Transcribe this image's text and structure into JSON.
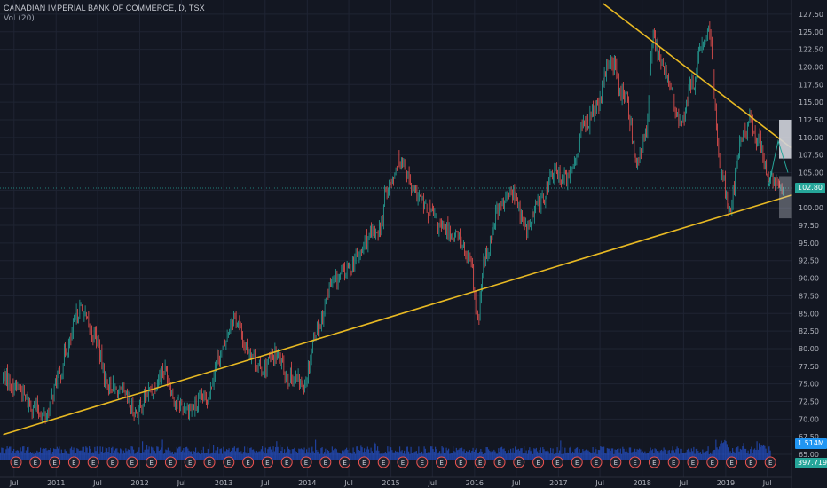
{
  "header": {
    "symbol_title": "CANADIAN IMPERIAL BANK OF COMMERCE, D, TSX",
    "volume_indicator": "Vol (20)"
  },
  "price_scale": {
    "ticks": [
      "127.50",
      "125.00",
      "122.50",
      "120.00",
      "117.50",
      "115.00",
      "112.50",
      "110.00",
      "107.50",
      "105.00",
      "102.50",
      "100.00",
      "97.50",
      "95.00",
      "92.50",
      "90.00",
      "87.50",
      "85.00",
      "82.50",
      "80.00",
      "77.50",
      "75.00",
      "72.50",
      "70.00",
      "67.50",
      "65.00"
    ],
    "last_price": "102.80",
    "last_volume": "1.514M",
    "volume_ma": "397.719K"
  },
  "time_axis": {
    "labels": [
      "Jul",
      "2011",
      "Jul",
      "2012",
      "Jul",
      "2013",
      "Jul",
      "2014",
      "Jul",
      "2015",
      "Jul",
      "2016",
      "Jul",
      "2017",
      "Jul",
      "2018",
      "Jul",
      "2019",
      "Jul"
    ]
  },
  "earnings_marker_label": "E",
  "colors": {
    "background": "#131722",
    "grid": "#1f2433",
    "up": "#26a69a",
    "down": "#ef5350",
    "trendline": "#e8b923",
    "volume": "#2962ff",
    "last_price_badge": "#26a69a",
    "volume_badge": "#2196f3",
    "volume_ma_badge": "#26a69a"
  },
  "chart_data": {
    "type": "line",
    "title": "CANADIAN IMPERIAL BANK OF COMMERCE, D, TSX",
    "xlabel": "",
    "ylabel": "",
    "ylim": [
      65,
      128.5
    ],
    "grid": true,
    "x_range": [
      "2010-05-01",
      "2019-10-15"
    ],
    "series": [
      {
        "name": "",
        "x": [
          "2010-05",
          "2010-07",
          "2010-09",
          "2010-11",
          "2011-01",
          "2011-02",
          "2011-04",
          "2011-06",
          "2011-08",
          "2011-10",
          "2011-12",
          "2012-02",
          "2012-04",
          "2012-06",
          "2012-08",
          "2012-10",
          "2012-12",
          "2013-02",
          "2013-04",
          "2013-06",
          "2013-08",
          "2013-10",
          "2013-12",
          "2014-02",
          "2014-04",
          "2014-06",
          "2014-08",
          "2014-09",
          "2014-11",
          "2014-12",
          "2015-02",
          "2015-04",
          "2015-06",
          "2015-08",
          "2015-10",
          "2015-12",
          "2016-01",
          "2016-02",
          "2016-04",
          "2016-06",
          "2016-08",
          "2016-10",
          "2016-12",
          "2017-02",
          "2017-03",
          "2017-04",
          "2017-06",
          "2017-08",
          "2017-10",
          "2017-12",
          "2018-01",
          "2018-02",
          "2018-04",
          "2018-06",
          "2018-08",
          "2018-09",
          "2018-10",
          "2018-12",
          "2019-01",
          "2019-03",
          "2019-04",
          "2019-05",
          "2019-07",
          "2019-08",
          "2019-09"
        ],
        "values": [
          76.0,
          74.5,
          72.0,
          70.5,
          76.0,
          80.0,
          85.5,
          82.0,
          75.0,
          73.5,
          71.0,
          74.0,
          77.0,
          72.0,
          71.5,
          73.0,
          79.0,
          84.5,
          80.0,
          77.0,
          79.0,
          76.0,
          75.0,
          83.0,
          89.0,
          91.0,
          93.0,
          95.5,
          97.0,
          103.0,
          107.0,
          102.0,
          99.5,
          97.0,
          96.0,
          92.0,
          84.0,
          93.0,
          100.0,
          102.0,
          97.0,
          101.0,
          105.0,
          104.0,
          107.0,
          111.5,
          114.0,
          121.0,
          116.0,
          106.5,
          110.0,
          124.0,
          119.0,
          112.0,
          118.0,
          122.5,
          125.0,
          105.0,
          100.0,
          110.0,
          112.5,
          110.0,
          104.0,
          103.0,
          102.8
        ]
      },
      {
        "name": "",
        "x": [
          "2010-05",
          "2019-10"
        ],
        "values": [
          67.8,
          101.8
        ]
      },
      {
        "name": "",
        "x": [
          "2017-07",
          "2019-10"
        ],
        "values": [
          129.0,
          108.5
        ]
      }
    ],
    "volume": {
      "name": "Vol (20)",
      "last": "1.514M",
      "ma": "397.719K"
    }
  }
}
